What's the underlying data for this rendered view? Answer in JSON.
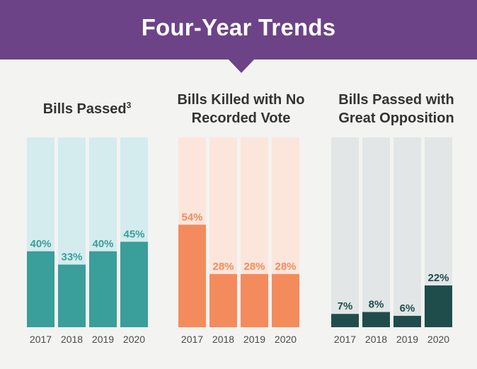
{
  "banner": {
    "title": "Four-Year Trends"
  },
  "panels": [
    {
      "title": "Bills Passed",
      "footnote": "3"
    },
    {
      "title": "Bills Killed with No Recorded Vote",
      "footnote": ""
    },
    {
      "title": "Bills Passed with Great Opposition",
      "footnote": ""
    }
  ],
  "chart_data": [
    {
      "type": "bar",
      "title": "Bills Passed",
      "categories": [
        "2017",
        "2018",
        "2019",
        "2020"
      ],
      "values": [
        40,
        33,
        40,
        45
      ],
      "value_labels": [
        "40%",
        "33%",
        "40%",
        "45%"
      ],
      "unit": "%",
      "ylim": [
        0,
        100
      ],
      "colors": {
        "bar": "#3a9e9a",
        "track": "#d4ecee",
        "label": "#3a9e9a"
      }
    },
    {
      "type": "bar",
      "title": "Bills Killed with No Recorded Vote",
      "categories": [
        "2017",
        "2018",
        "2019",
        "2020"
      ],
      "values": [
        54,
        28,
        28,
        28
      ],
      "value_labels": [
        "54%",
        "28%",
        "28%",
        "28%"
      ],
      "unit": "%",
      "ylim": [
        0,
        100
      ],
      "colors": {
        "bar": "#f48b5c",
        "track": "#fce6dc",
        "label": "#f48b5c"
      }
    },
    {
      "type": "bar",
      "title": "Bills Passed with Great Opposition",
      "categories": [
        "2017",
        "2018",
        "2019",
        "2020"
      ],
      "values": [
        7,
        8,
        6,
        22
      ],
      "value_labels": [
        "7%",
        "8%",
        "6%",
        "22%"
      ],
      "unit": "%",
      "ylim": [
        0,
        100
      ],
      "colors": {
        "bar": "#1f4d4c",
        "track": "#e2e6e6",
        "label": "#1f4d4c"
      }
    }
  ]
}
